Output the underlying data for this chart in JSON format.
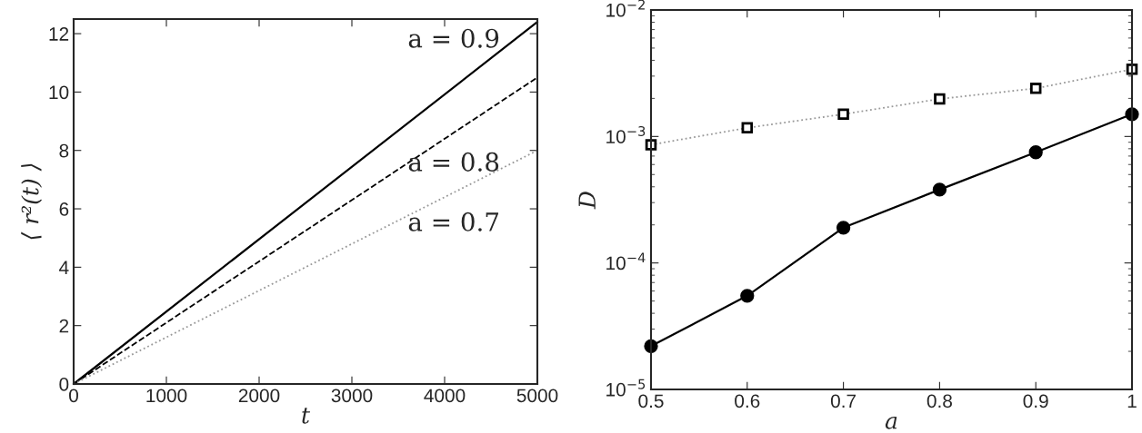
{
  "chart_data": [
    {
      "type": "line",
      "xlabel": "t",
      "ylabel": "⟨ r²(t) ⟩",
      "x": [
        0,
        5000
      ],
      "xlim": [
        0,
        5000
      ],
      "ylim": [
        0,
        12.5
      ],
      "xticks": [
        0,
        1000,
        2000,
        3000,
        4000,
        5000
      ],
      "yticks": [
        0,
        2,
        4,
        6,
        8,
        10,
        12
      ],
      "grid": false,
      "legend": false,
      "marker": "none",
      "series": [
        {
          "name": "a = 0.9",
          "color": "#000000",
          "line_style": "solid",
          "values": [
            0,
            12.4
          ]
        },
        {
          "name": "a = 0.8",
          "color": "#000000",
          "line_style": "dashed",
          "values": [
            0,
            10.5
          ]
        },
        {
          "name": "a = 0.7",
          "color": "#999999",
          "line_style": "dotted",
          "values": [
            0,
            8.0
          ]
        }
      ]
    },
    {
      "type": "line",
      "xlabel": "a",
      "ylabel": "D",
      "x": [
        0.5,
        0.6,
        0.7,
        0.8,
        0.9,
        1.0
      ],
      "log": "y",
      "xlim": [
        0.5,
        1
      ],
      "ylim": [
        1e-05,
        0.01
      ],
      "xticks": [
        0.5,
        0.6,
        0.7,
        0.8,
        0.9,
        1
      ],
      "yticks": [
        {
          "value": 1e-05,
          "label": "10$^{−5}$"
        },
        {
          "value": 0.0001,
          "label": "10$^{−4}$"
        },
        {
          "value": 0.001,
          "label": "10$^{−3}$"
        },
        {
          "value": 0.01,
          "label": "10$^{−2}$"
        }
      ],
      "grid": false,
      "legend": false,
      "series": [
        {
          "color": "#999999",
          "line_style": "dotted",
          "marker": "square",
          "values": [
            0.00086,
            0.00117,
            0.0015,
            0.00198,
            0.0024,
            0.0034
          ]
        },
        {
          "color": "#000000",
          "line_style": "solid",
          "marker": "circle",
          "values": [
            2.2e-05,
            5.5e-05,
            0.00019,
            0.00038,
            0.00075,
            0.0015
          ]
        }
      ]
    }
  ]
}
